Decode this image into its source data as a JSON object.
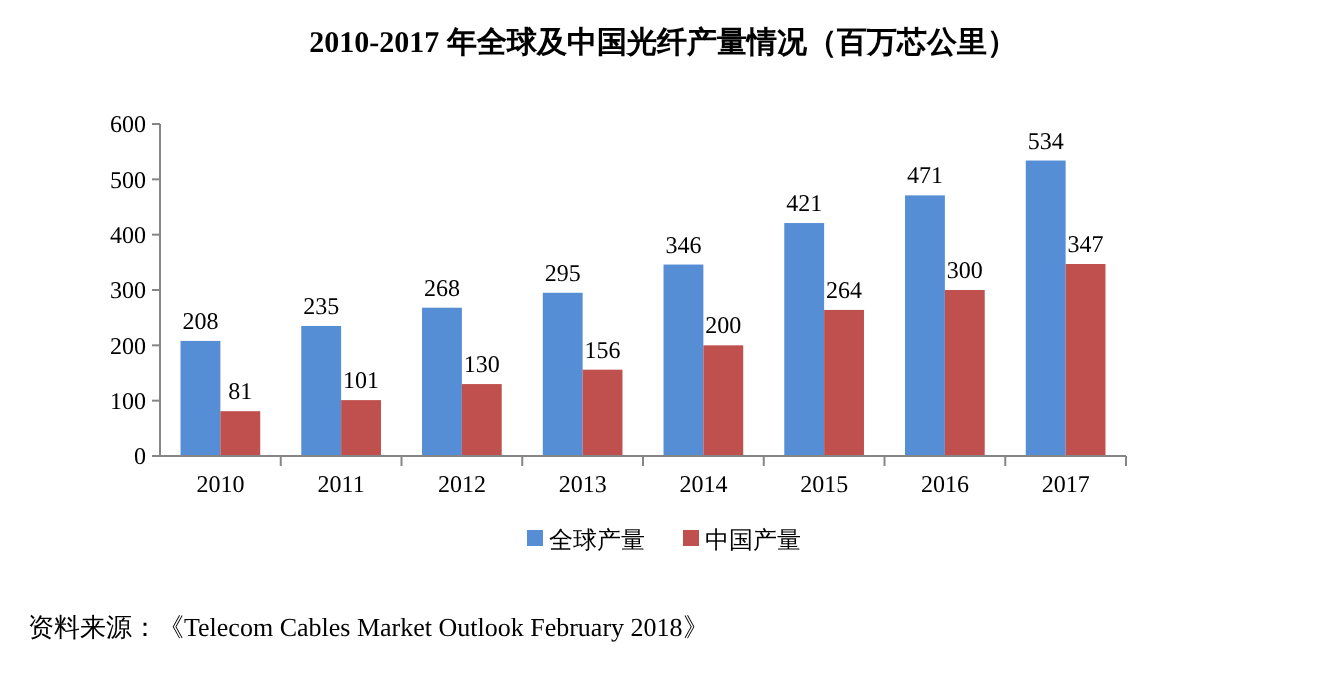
{
  "chart_data": {
    "type": "bar",
    "title": "2010-2017 年全球及中国光纤产量情况（百万芯公里）",
    "categories": [
      "2010",
      "2011",
      "2012",
      "2013",
      "2014",
      "2015",
      "2016",
      "2017"
    ],
    "series": [
      {
        "name": "全球产量",
        "color": "#558ed5",
        "values": [
          208,
          235,
          268,
          295,
          346,
          421,
          471,
          534
        ]
      },
      {
        "name": "中国产量",
        "color": "#c0504d",
        "values": [
          81,
          101,
          130,
          156,
          200,
          264,
          300,
          347
        ]
      }
    ],
    "ylim": [
      0,
      600
    ],
    "yticks": [
      0,
      100,
      200,
      300,
      400,
      500,
      600
    ],
    "grid": false,
    "legend": "bottom",
    "data_labels": true,
    "annotations": [
      "资料来源：《Telecom Cables Market Outlook February 2018》"
    ]
  }
}
